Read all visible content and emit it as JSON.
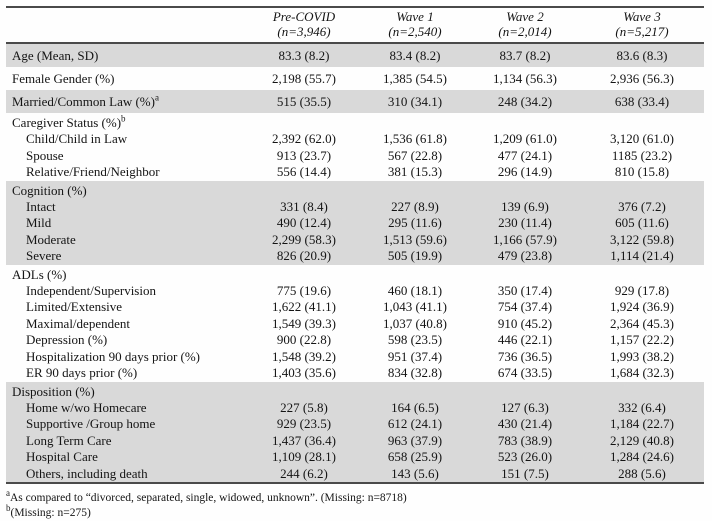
{
  "page": {
    "colors": {
      "row_shade": "#d9d9d9",
      "rule": "#4a4a4a",
      "text": "#141414"
    },
    "columns": [
      {
        "title": "Pre-COVID",
        "n": "(n=3,946)"
      },
      {
        "title": "Wave 1",
        "n": "(n=2,540)"
      },
      {
        "title": "Wave 2",
        "n": "(n=2,014)"
      },
      {
        "title": "Wave 3",
        "n": "(n=5,217)"
      }
    ],
    "sections": [
      {
        "shaded": true,
        "rows": [
          {
            "type": "single",
            "label": "Age (Mean, SD)",
            "sup": "",
            "values": [
              "83.3 (8.2)",
              "83.4 (8.2)",
              "83.7 (8.2)",
              "83.6 (8.3)"
            ]
          }
        ]
      },
      {
        "shaded": false,
        "rows": [
          {
            "type": "single",
            "label": "Female Gender (%)",
            "sup": "",
            "values": [
              "2,198 (55.7)",
              "1,385 (54.5)",
              "1,134 (56.3)",
              "2,936 (56.3)"
            ]
          }
        ]
      },
      {
        "shaded": true,
        "rows": [
          {
            "type": "single",
            "label": "Married/Common Law (%)",
            "sup": "a",
            "values": [
              "515 (35.5)",
              "310 (34.1)",
              "248 (34.2)",
              "638 (33.4)"
            ]
          }
        ]
      },
      {
        "shaded": false,
        "rows": [
          {
            "type": "sec",
            "label": "Caregiver Status (%)",
            "sup": "b",
            "values": [
              "",
              "",
              "",
              ""
            ]
          },
          {
            "type": "sub",
            "label": "Child/Child in Law",
            "sup": "",
            "values": [
              "2,392 (62.0)",
              "1,536 (61.8)",
              "1,209 (61.0)",
              "3,120 (61.0)"
            ]
          },
          {
            "type": "sub",
            "label": "Spouse",
            "sup": "",
            "values": [
              "913 (23.7)",
              "567 (22.8)",
              "477 (24.1)",
              "1185 (23.2)"
            ]
          },
          {
            "type": "sub",
            "label": "Relative/Friend/Neighbor",
            "sup": "",
            "values": [
              "556 (14.4)",
              "381 (15.3)",
              "296 (14.9)",
              "810 (15.8)"
            ]
          }
        ]
      },
      {
        "shaded": true,
        "rows": [
          {
            "type": "sec",
            "label": "Cognition (%)",
            "sup": "",
            "values": [
              "",
              "",
              "",
              ""
            ]
          },
          {
            "type": "sub",
            "label": "Intact",
            "sup": "",
            "values": [
              "331 (8.4)",
              "227 (8.9)",
              "139 (6.9)",
              "376 (7.2)"
            ]
          },
          {
            "type": "sub",
            "label": "Mild",
            "sup": "",
            "values": [
              "490 (12.4)",
              "295 (11.6)",
              "230 (11.4)",
              "605 (11.6)"
            ]
          },
          {
            "type": "sub",
            "label": "Moderate",
            "sup": "",
            "values": [
              "2,299 (58.3)",
              "1,513 (59.6)",
              "1,166 (57.9)",
              "3,122 (59.8)"
            ]
          },
          {
            "type": "sub",
            "label": "Severe",
            "sup": "",
            "values": [
              "826 (20.9)",
              "505 (19.9)",
              "479 (23.8)",
              "1,114 (21.4)"
            ]
          }
        ]
      },
      {
        "shaded": false,
        "rows": [
          {
            "type": "sec",
            "label": "ADLs (%)",
            "sup": "",
            "values": [
              "",
              "",
              "",
              ""
            ]
          },
          {
            "type": "sub",
            "label": "Independent/Supervision",
            "sup": "",
            "values": [
              "775 (19.6)",
              "460 (18.1)",
              "350 (17.4)",
              "929 (17.8)"
            ]
          },
          {
            "type": "sub",
            "label": "Limited/Extensive",
            "sup": "",
            "values": [
              "1,622 (41.1)",
              "1,043 (41.1)",
              "754 (37.4)",
              "1,924 (36.9)"
            ]
          },
          {
            "type": "sub",
            "label": "Maximal/dependent",
            "sup": "",
            "values": [
              "1,549 (39.3)",
              "1,037 (40.8)",
              "910 (45.2)",
              "2,364 (45.3)"
            ]
          },
          {
            "type": "sub",
            "label": "Depression (%)",
            "sup": "",
            "values": [
              "900 (22.8)",
              "598 (23.5)",
              "446 (22.1)",
              "1,157 (22.2)"
            ]
          },
          {
            "type": "sub",
            "label": "Hospitalization 90 days prior (%)",
            "sup": "",
            "values": [
              "1,548 (39.2)",
              "951 (37.4)",
              "736 (36.5)",
              "1,993 (38.2)"
            ]
          },
          {
            "type": "sub",
            "label": "ER 90 days prior (%)",
            "sup": "",
            "values": [
              "1,403 (35.6)",
              "834 (32.8)",
              "674 (33.5)",
              "1,684 (32.3)"
            ]
          }
        ]
      },
      {
        "shaded": true,
        "rows": [
          {
            "type": "sec",
            "label": "Disposition (%)",
            "sup": "",
            "values": [
              "",
              "",
              "",
              ""
            ]
          },
          {
            "type": "sub",
            "label": "Home w/wo Homecare",
            "sup": "",
            "values": [
              "227 (5.8)",
              "164 (6.5)",
              "127 (6.3)",
              "332 (6.4)"
            ]
          },
          {
            "type": "sub",
            "label": "Supportive /Group home",
            "sup": "",
            "values": [
              "929 (23.5)",
              "612 (24.1)",
              "430 (21.4)",
              "1,184 (22.7)"
            ]
          },
          {
            "type": "sub",
            "label": "Long Term Care",
            "sup": "",
            "values": [
              "1,437 (36.4)",
              "963 (37.9)",
              "783 (38.9)",
              "2,129 (40.8)"
            ]
          },
          {
            "type": "sub",
            "label": "Hospital Care",
            "sup": "",
            "values": [
              "1,109 (28.1)",
              "658 (25.9)",
              "523 (26.0)",
              "1,284 (24.6)"
            ]
          },
          {
            "type": "sub",
            "label": "Others, including death",
            "sup": "",
            "values": [
              "244 (6.2)",
              "143 (5.6)",
              "151 (7.5)",
              "288 (5.6)"
            ]
          }
        ]
      }
    ],
    "footnotes": [
      {
        "sup": "a",
        "text": "As compared to “divorced, separated, single, widowed, unknown”. (Missing: n=8718)"
      },
      {
        "sup": "b",
        "text": "(Missing: n=275)"
      }
    ]
  }
}
